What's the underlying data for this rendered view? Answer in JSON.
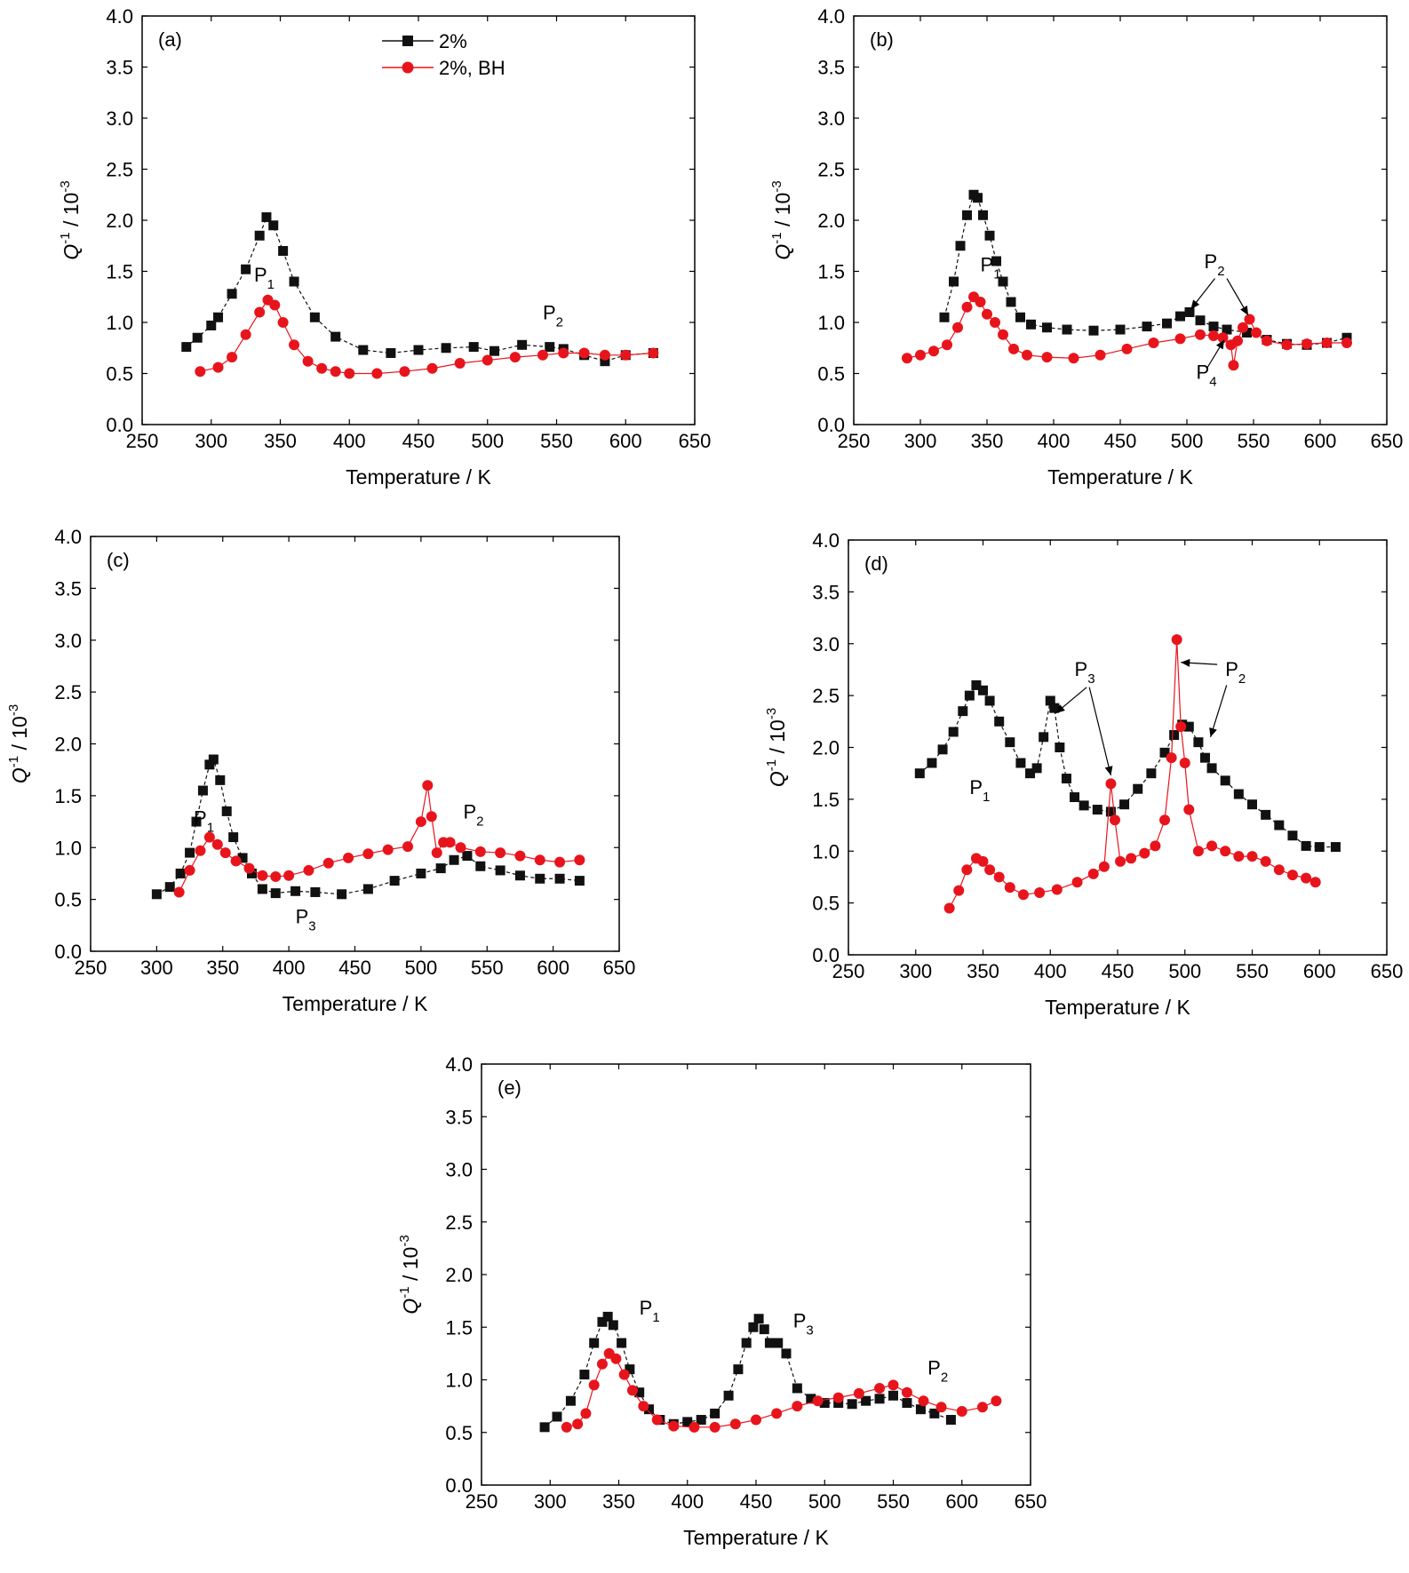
{
  "figure": {
    "series_names": [
      "2%",
      "2%, BH"
    ],
    "colors": {
      "black": "#111111",
      "red": "#e8141c"
    },
    "x_axis": {
      "title": "Temperature / K",
      "ticks": [
        250,
        300,
        350,
        400,
        450,
        500,
        550,
        600,
        650
      ],
      "tick_labels": [
        "250",
        "300",
        "350",
        "400",
        "450",
        "500",
        "550",
        "600",
        "650"
      ]
    },
    "y_axis": {
      "title_main": "Q",
      "title_sup1": "-1",
      "title_mid": " / 10",
      "title_sup2": "-3",
      "ticks": [
        0,
        0.5,
        1,
        1.5,
        2,
        2.5,
        3,
        3.5,
        4
      ],
      "tick_labels": [
        "0.0",
        "0.5",
        "1.0",
        "1.5",
        "2.0",
        "2.5",
        "3.0",
        "3.5",
        "4.0"
      ]
    }
  },
  "chart_data": [
    {
      "panel": "(a)",
      "type": "scatter",
      "xlim": [
        250,
        650
      ],
      "ylim": [
        0,
        4
      ],
      "legend": "top-left",
      "series": [
        {
          "name": "2%",
          "color": "#111111",
          "marker": "square",
          "x": [
            282,
            290,
            300,
            305,
            315,
            325,
            335,
            340,
            345,
            352,
            360,
            375,
            390,
            410,
            430,
            450,
            470,
            490,
            505,
            525,
            545,
            555,
            570,
            585,
            600,
            620
          ],
          "y": [
            0.76,
            0.85,
            0.97,
            1.05,
            1.28,
            1.52,
            1.85,
            2.03,
            1.95,
            1.7,
            1.4,
            1.05,
            0.86,
            0.73,
            0.7,
            0.73,
            0.75,
            0.76,
            0.72,
            0.78,
            0.76,
            0.74,
            0.68,
            0.62,
            0.68,
            0.7
          ]
        },
        {
          "name": "2%, BH",
          "color": "#e8141c",
          "marker": "circle",
          "x": [
            292,
            305,
            315,
            325,
            335,
            341,
            346,
            352,
            360,
            370,
            380,
            390,
            400,
            420,
            440,
            460,
            480,
            500,
            520,
            540,
            555,
            570,
            585,
            600,
            620
          ],
          "y": [
            0.52,
            0.56,
            0.66,
            0.88,
            1.1,
            1.22,
            1.17,
            1.0,
            0.78,
            0.62,
            0.55,
            0.52,
            0.5,
            0.5,
            0.52,
            0.55,
            0.6,
            0.63,
            0.66,
            0.68,
            0.7,
            0.7,
            0.68,
            0.68,
            0.7
          ]
        }
      ],
      "annotations": [
        {
          "label": "P",
          "sub": "1",
          "x": 331,
          "y": 1.4
        },
        {
          "label": "P",
          "sub": "2",
          "x": 540,
          "y": 1.03
        }
      ]
    },
    {
      "panel": "(b)",
      "type": "scatter",
      "xlim": [
        250,
        650
      ],
      "ylim": [
        0,
        4
      ],
      "legend": "none",
      "series": [
        {
          "name": "2%",
          "color": "#111111",
          "marker": "square",
          "x": [
            318,
            325,
            330,
            335,
            340,
            343,
            347,
            352,
            357,
            362,
            368,
            375,
            383,
            395,
            410,
            430,
            450,
            470,
            485,
            495,
            502,
            510,
            520,
            530,
            545,
            560,
            575,
            590,
            605,
            620
          ],
          "y": [
            1.05,
            1.4,
            1.75,
            2.05,
            2.25,
            2.22,
            2.05,
            1.85,
            1.6,
            1.4,
            1.2,
            1.05,
            0.98,
            0.95,
            0.93,
            0.92,
            0.93,
            0.96,
            0.99,
            1.06,
            1.1,
            1.02,
            0.96,
            0.93,
            0.9,
            0.83,
            0.79,
            0.78,
            0.8,
            0.85
          ]
        },
        {
          "name": "2%, BH",
          "color": "#e8141c",
          "marker": "circle",
          "x": [
            290,
            300,
            310,
            320,
            328,
            335,
            340,
            345,
            350,
            356,
            362,
            370,
            380,
            395,
            415,
            435,
            455,
            475,
            495,
            510,
            520,
            527,
            533,
            535,
            538,
            542,
            547,
            552,
            560,
            575,
            590,
            605,
            620
          ],
          "y": [
            0.65,
            0.68,
            0.72,
            0.78,
            0.95,
            1.15,
            1.25,
            1.2,
            1.08,
            1.0,
            0.88,
            0.74,
            0.68,
            0.66,
            0.65,
            0.68,
            0.74,
            0.8,
            0.84,
            0.88,
            0.87,
            0.85,
            0.78,
            0.58,
            0.82,
            0.95,
            1.03,
            0.9,
            0.82,
            0.78,
            0.79,
            0.8,
            0.8
          ]
        }
      ],
      "annotations": [
        {
          "label": "P",
          "sub": "1",
          "x": 345,
          "y": 1.5
        },
        {
          "label": "P",
          "sub": "2",
          "x": 513,
          "y": 1.53
        },
        {
          "label": "P",
          "sub": "4",
          "x": 507,
          "y": 0.45
        }
      ],
      "arrows": [
        {
          "from": [
            521,
            1.43
          ],
          "to": [
            503,
            1.13
          ]
        },
        {
          "from": [
            530,
            1.43
          ],
          "to": [
            546,
            1.07
          ]
        },
        {
          "from": [
            515,
            0.55
          ],
          "to": [
            528,
            0.83
          ]
        }
      ]
    },
    {
      "panel": "(c)",
      "type": "scatter",
      "xlim": [
        250,
        650
      ],
      "ylim": [
        0,
        4
      ],
      "legend": "none",
      "series": [
        {
          "name": "2%",
          "color": "#111111",
          "marker": "square",
          "x": [
            300,
            310,
            318,
            325,
            330,
            335,
            340,
            343,
            348,
            353,
            358,
            365,
            372,
            380,
            390,
            405,
            420,
            440,
            460,
            480,
            500,
            515,
            525,
            535,
            545,
            560,
            575,
            590,
            605,
            620
          ],
          "y": [
            0.55,
            0.62,
            0.75,
            0.95,
            1.25,
            1.55,
            1.8,
            1.85,
            1.65,
            1.35,
            1.1,
            0.9,
            0.75,
            0.6,
            0.56,
            0.58,
            0.57,
            0.55,
            0.6,
            0.68,
            0.75,
            0.8,
            0.88,
            0.92,
            0.82,
            0.78,
            0.73,
            0.7,
            0.7,
            0.68
          ]
        },
        {
          "name": "2%, BH",
          "color": "#e8141c",
          "marker": "circle",
          "x": [
            317,
            325,
            333,
            340,
            346,
            352,
            360,
            370,
            380,
            390,
            400,
            415,
            430,
            445,
            460,
            475,
            490,
            500,
            505,
            508,
            512,
            517,
            522,
            530,
            545,
            560,
            575,
            590,
            605,
            620
          ],
          "y": [
            0.57,
            0.78,
            0.97,
            1.1,
            1.03,
            0.95,
            0.87,
            0.8,
            0.73,
            0.72,
            0.73,
            0.78,
            0.85,
            0.9,
            0.94,
            0.98,
            1.01,
            1.25,
            1.6,
            1.3,
            0.95,
            1.05,
            1.05,
            1.0,
            0.96,
            0.95,
            0.92,
            0.88,
            0.86,
            0.88
          ]
        }
      ],
      "annotations": [
        {
          "label": "P",
          "sub": "1",
          "x": 328,
          "y": 1.22
        },
        {
          "label": "P",
          "sub": "2",
          "x": 532,
          "y": 1.28
        },
        {
          "label": "P",
          "sub": "3",
          "x": 405,
          "y": 0.27
        }
      ]
    },
    {
      "panel": "(d)",
      "type": "scatter",
      "xlim": [
        250,
        650
      ],
      "ylim": [
        0,
        4
      ],
      "legend": "none",
      "series": [
        {
          "name": "2%",
          "color": "#111111",
          "marker": "square",
          "x": [
            303,
            312,
            320,
            328,
            335,
            340,
            345,
            350,
            355,
            362,
            370,
            378,
            385,
            390,
            395,
            400,
            403,
            407,
            412,
            418,
            425,
            435,
            445,
            455,
            465,
            475,
            485,
            492,
            498,
            503,
            510,
            515,
            520,
            530,
            540,
            550,
            560,
            570,
            580,
            590,
            600,
            612
          ],
          "y": [
            1.75,
            1.85,
            1.98,
            2.15,
            2.35,
            2.5,
            2.6,
            2.55,
            2.45,
            2.25,
            2.05,
            1.85,
            1.75,
            1.8,
            2.1,
            2.45,
            2.38,
            2.0,
            1.7,
            1.52,
            1.44,
            1.4,
            1.38,
            1.45,
            1.6,
            1.75,
            1.95,
            2.12,
            2.22,
            2.2,
            2.05,
            1.9,
            1.8,
            1.68,
            1.55,
            1.45,
            1.35,
            1.25,
            1.15,
            1.05,
            1.04,
            1.04
          ]
        },
        {
          "name": "2%, BH",
          "color": "#e8141c",
          "marker": "circle",
          "x": [
            325,
            332,
            338,
            345,
            350,
            355,
            362,
            370,
            380,
            392,
            405,
            420,
            432,
            440,
            445,
            448,
            452,
            460,
            470,
            478,
            485,
            490,
            494,
            497,
            500,
            503,
            510,
            520,
            530,
            540,
            550,
            560,
            570,
            580,
            590,
            597
          ],
          "y": [
            0.45,
            0.62,
            0.82,
            0.93,
            0.9,
            0.82,
            0.75,
            0.65,
            0.58,
            0.6,
            0.63,
            0.7,
            0.78,
            0.85,
            1.65,
            1.3,
            0.9,
            0.93,
            0.98,
            1.05,
            1.3,
            1.9,
            3.04,
            2.2,
            1.85,
            1.4,
            1.0,
            1.05,
            1.0,
            0.95,
            0.95,
            0.9,
            0.82,
            0.77,
            0.74,
            0.7
          ]
        }
      ],
      "annotations": [
        {
          "label": "P",
          "sub": "1",
          "x": 340,
          "y": 1.55
        },
        {
          "label": "P",
          "sub": "3",
          "x": 418,
          "y": 2.69
        },
        {
          "label": "P",
          "sub": "2",
          "x": 530,
          "y": 2.69
        }
      ],
      "arrows": [
        {
          "from": [
            427,
            2.58
          ],
          "to": [
            404,
            2.33
          ]
        },
        {
          "from": [
            429,
            2.58
          ],
          "to": [
            445,
            1.73
          ]
        },
        {
          "from": [
            524,
            2.8
          ],
          "to": [
            497,
            2.82
          ]
        },
        {
          "from": [
            531,
            2.6
          ],
          "to": [
            519,
            2.1
          ]
        }
      ]
    },
    {
      "panel": "(e)",
      "type": "scatter",
      "xlim": [
        250,
        650
      ],
      "ylim": [
        0,
        4
      ],
      "legend": "none",
      "series": [
        {
          "name": "2%",
          "color": "#111111",
          "marker": "square",
          "x": [
            296,
            305,
            315,
            325,
            332,
            338,
            342,
            346,
            352,
            358,
            365,
            372,
            380,
            390,
            400,
            410,
            420,
            430,
            437,
            443,
            448,
            452,
            456,
            460,
            466,
            472,
            480,
            490,
            500,
            510,
            520,
            530,
            540,
            550,
            560,
            570,
            580,
            592
          ],
          "y": [
            0.55,
            0.65,
            0.8,
            1.05,
            1.35,
            1.55,
            1.6,
            1.52,
            1.35,
            1.1,
            0.88,
            0.72,
            0.62,
            0.58,
            0.6,
            0.62,
            0.68,
            0.85,
            1.1,
            1.35,
            1.5,
            1.58,
            1.48,
            1.35,
            1.35,
            1.25,
            0.92,
            0.82,
            0.78,
            0.78,
            0.77,
            0.8,
            0.82,
            0.85,
            0.78,
            0.72,
            0.68,
            0.62
          ]
        },
        {
          "name": "2%, BH",
          "color": "#e8141c",
          "marker": "circle",
          "x": [
            312,
            320,
            326,
            332,
            338,
            343,
            348,
            354,
            360,
            368,
            378,
            390,
            405,
            420,
            435,
            450,
            465,
            480,
            495,
            510,
            525,
            540,
            550,
            560,
            572,
            585,
            600,
            615,
            625
          ],
          "y": [
            0.55,
            0.58,
            0.68,
            0.95,
            1.15,
            1.25,
            1.2,
            1.05,
            0.9,
            0.75,
            0.62,
            0.56,
            0.55,
            0.55,
            0.58,
            0.62,
            0.68,
            0.75,
            0.8,
            0.83,
            0.87,
            0.92,
            0.95,
            0.88,
            0.8,
            0.74,
            0.7,
            0.74,
            0.8
          ]
        }
      ],
      "annotations": [
        {
          "label": "P",
          "sub": "1",
          "x": 365,
          "y": 1.62
        },
        {
          "label": "P",
          "sub": "3",
          "x": 477,
          "y": 1.5
        },
        {
          "label": "P",
          "sub": "2",
          "x": 575,
          "y": 1.05
        }
      ]
    }
  ]
}
